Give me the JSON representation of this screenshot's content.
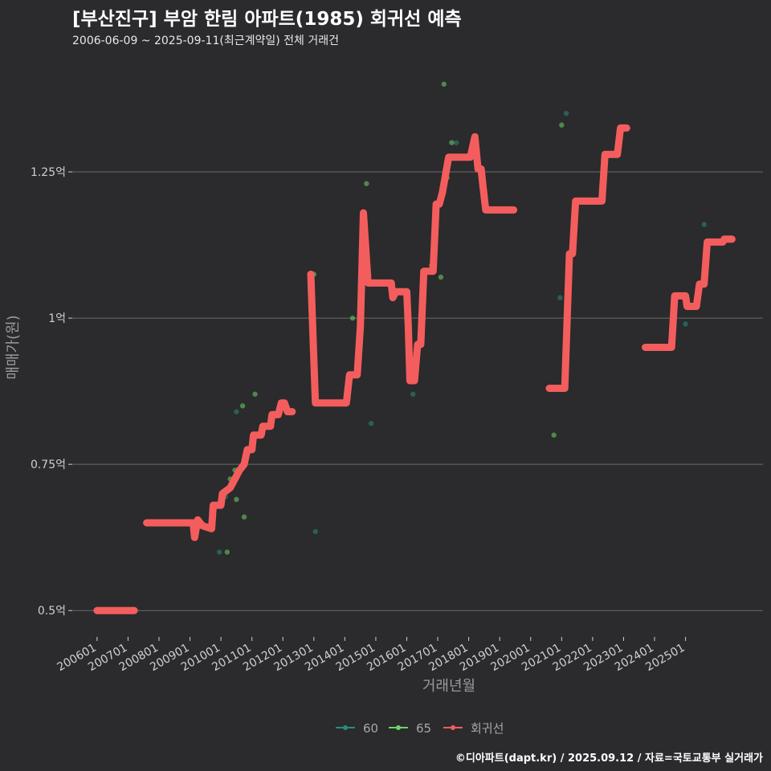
{
  "title": "[부산진구] 부암 한림 아파트(1985) 회귀선 예측",
  "subtitle": "2006-06-09 ~ 2025-09-11(최근계약일) 전체 거래건",
  "caption": "©디아파트(dapt.kr) / 2025.09.12 / 자료=국토교통부 실거래가",
  "colors": {
    "background": "#2b2a2c",
    "grid": "#6a6a6a",
    "series_60": "#2a8a7c",
    "series_65": "#6fd36a",
    "regression": "#f45d5d"
  },
  "chart_data": {
    "type": "line",
    "xlabel": "거래년월",
    "ylabel": "매매가(원)",
    "x_ticks": [
      "200601",
      "200701",
      "200801",
      "200901",
      "201001",
      "201101",
      "201201",
      "201301",
      "201401",
      "201501",
      "201601",
      "201701",
      "201801",
      "201901",
      "202001",
      "202101",
      "202201",
      "202301",
      "202401",
      "202501"
    ],
    "x_tick_years": [
      2006,
      2007,
      2008,
      2009,
      2010,
      2011,
      2012,
      2013,
      2014,
      2015,
      2016,
      2017,
      2018,
      2019,
      2020,
      2021,
      2022,
      2023,
      2024,
      2025
    ],
    "xlim": [
      2005.2,
      2027.5
    ],
    "y_ticks": [
      0.5,
      0.75,
      1.0,
      1.25
    ],
    "y_tick_labels": [
      "0.5억",
      "0.75억",
      "1억",
      "1.25억"
    ],
    "ylim": [
      0.455,
      1.445
    ],
    "legend": [
      "60",
      "65",
      "회귀선"
    ],
    "series": [
      {
        "name": "60",
        "type": "scatter",
        "points": [
          [
            2009.95,
            0.6
          ],
          [
            2010.15,
            0.695
          ],
          [
            2010.5,
            0.84
          ],
          [
            2013.05,
            0.635
          ],
          [
            2014.85,
            0.82
          ],
          [
            2017.6,
            1.3
          ],
          [
            2020.95,
            1.035
          ],
          [
            2021.15,
            1.35
          ],
          [
            2025.0,
            0.99
          ],
          [
            2025.6,
            1.16
          ],
          [
            2016.2,
            0.87
          ]
        ]
      },
      {
        "name": "65",
        "type": "scatter",
        "points": [
          [
            2010.2,
            0.6
          ],
          [
            2010.3,
            0.725
          ],
          [
            2010.45,
            0.74
          ],
          [
            2010.5,
            0.69
          ],
          [
            2010.7,
            0.85
          ],
          [
            2010.75,
            0.66
          ],
          [
            2011.1,
            0.87
          ],
          [
            2013.0,
            1.075
          ],
          [
            2014.25,
            1.0
          ],
          [
            2014.7,
            1.23
          ],
          [
            2016.8,
            1.09
          ],
          [
            2017.1,
            1.07
          ],
          [
            2017.2,
            1.4
          ],
          [
            2017.3,
            1.24
          ],
          [
            2017.45,
            1.3
          ],
          [
            2020.75,
            0.8
          ],
          [
            2021.0,
            1.33
          ]
        ]
      },
      {
        "name": "회귀선",
        "type": "line",
        "segments": [
          [
            [
              2006.0,
              0.5
            ],
            [
              2007.2,
              0.5
            ]
          ],
          [
            [
              2007.6,
              0.65
            ],
            [
              2009.1,
              0.65
            ],
            [
              2009.15,
              0.625
            ],
            [
              2009.25,
              0.655
            ],
            [
              2009.4,
              0.645
            ],
            [
              2009.7,
              0.64
            ],
            [
              2009.75,
              0.68
            ],
            [
              2010.0,
              0.68
            ],
            [
              2010.05,
              0.7
            ],
            [
              2010.3,
              0.71
            ],
            [
              2010.45,
              0.725
            ],
            [
              2010.6,
              0.74
            ],
            [
              2010.75,
              0.75
            ],
            [
              2010.85,
              0.775
            ],
            [
              2011.0,
              0.775
            ],
            [
              2011.05,
              0.8
            ],
            [
              2011.3,
              0.8
            ],
            [
              2011.35,
              0.815
            ],
            [
              2011.6,
              0.815
            ],
            [
              2011.65,
              0.835
            ],
            [
              2011.85,
              0.835
            ],
            [
              2011.95,
              0.855
            ],
            [
              2012.05,
              0.855
            ],
            [
              2012.15,
              0.84
            ],
            [
              2012.3,
              0.84
            ]
          ],
          [
            [
              2012.9,
              1.075
            ],
            [
              2013.05,
              0.855
            ],
            [
              2014.05,
              0.855
            ],
            [
              2014.15,
              0.903
            ],
            [
              2014.4,
              0.903
            ],
            [
              2014.5,
              0.985
            ],
            [
              2014.6,
              1.18
            ],
            [
              2014.75,
              1.06
            ],
            [
              2015.5,
              1.06
            ],
            [
              2015.55,
              1.035
            ],
            [
              2015.65,
              1.045
            ],
            [
              2016.0,
              1.045
            ],
            [
              2016.05,
              0.985
            ],
            [
              2016.1,
              0.893
            ],
            [
              2016.25,
              0.893
            ],
            [
              2016.35,
              0.955
            ],
            [
              2016.45,
              0.955
            ],
            [
              2016.55,
              1.08
            ],
            [
              2016.85,
              1.08
            ],
            [
              2016.95,
              1.195
            ],
            [
              2017.05,
              1.195
            ],
            [
              2017.15,
              1.215
            ],
            [
              2017.35,
              1.275
            ],
            [
              2018.0,
              1.275
            ],
            [
              2018.05,
              1.275
            ],
            [
              2018.2,
              1.31
            ],
            [
              2018.3,
              1.255
            ],
            [
              2018.4,
              1.255
            ],
            [
              2018.45,
              1.23
            ],
            [
              2018.55,
              1.185
            ],
            [
              2019.45,
              1.185
            ]
          ],
          [
            [
              2020.6,
              0.88
            ],
            [
              2021.1,
              0.88
            ],
            [
              2021.25,
              1.11
            ],
            [
              2021.35,
              1.11
            ],
            [
              2021.45,
              1.2
            ],
            [
              2022.3,
              1.2
            ],
            [
              2022.4,
              1.28
            ],
            [
              2022.8,
              1.28
            ],
            [
              2022.9,
              1.325
            ],
            [
              2023.1,
              1.325
            ]
          ],
          [
            [
              2023.7,
              0.95
            ],
            [
              2024.55,
              0.95
            ],
            [
              2024.65,
              1.038
            ],
            [
              2025.0,
              1.038
            ],
            [
              2025.05,
              1.02
            ],
            [
              2025.35,
              1.02
            ],
            [
              2025.45,
              1.058
            ],
            [
              2025.6,
              1.058
            ],
            [
              2025.7,
              1.13
            ],
            [
              2026.2,
              1.13
            ],
            [
              2026.25,
              1.135
            ],
            [
              2026.5,
              1.135
            ]
          ]
        ]
      }
    ]
  }
}
